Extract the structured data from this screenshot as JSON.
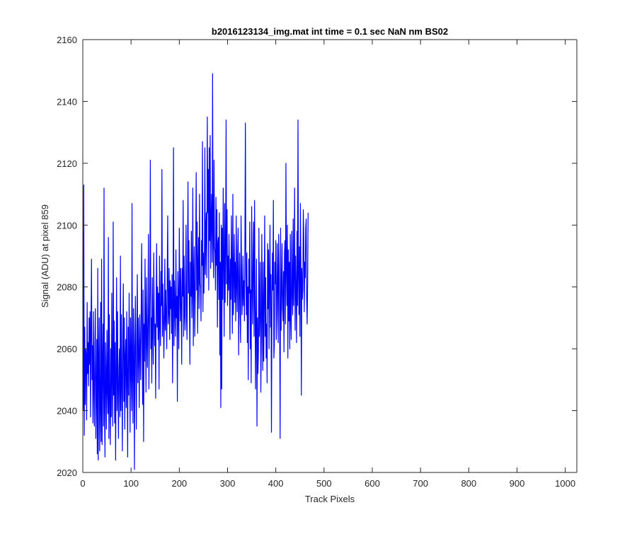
{
  "chart_data": {
    "type": "line",
    "title": "b2016123134_img.mat int time = 0.1 sec  NaN nm BS02",
    "xlabel": "Track Pixels",
    "ylabel": "Signal (ADU) at pixel 859",
    "xlim": [
      0,
      1024
    ],
    "ylim": [
      2020,
      2160
    ],
    "xticks": [
      0,
      100,
      200,
      300,
      400,
      500,
      600,
      700,
      800,
      900,
      1000
    ],
    "yticks": [
      2020,
      2040,
      2060,
      2080,
      2100,
      2120,
      2140,
      2160
    ],
    "grid": false,
    "legend": "none",
    "line_color": "#0000ff",
    "series": [
      {
        "x_start": 1,
        "x_step": 1,
        "y": [
          2040,
          2113,
          2032,
          2067,
          2042,
          2060,
          2058,
          2037,
          2075,
          2052,
          2062,
          2048,
          2070,
          2055,
          2072,
          2038,
          2066,
          2089,
          2050,
          2061,
          2036,
          2072,
          2047,
          2035,
          2060,
          2073,
          2031,
          2045,
          2063,
          2026,
          2086,
          2024,
          2056,
          2070,
          2027,
          2040,
          2075,
          2030,
          2089,
          2029,
          2054,
          2068,
          2035,
          2112,
          2041,
          2025,
          2062,
          2052,
          2034,
          2066,
          2047,
          2039,
          2096,
          2031,
          2071,
          2044,
          2029,
          2060,
          2038,
          2078,
          2050,
          2035,
          2101,
          2045,
          2069,
          2036,
          2062,
          2024,
          2051,
          2083,
          2040,
          2072,
          2047,
          2031,
          2054,
          2060,
          2038,
          2090,
          2040,
          2071,
          2048,
          2027,
          2065,
          2081,
          2043,
          2070,
          2034,
          2057,
          2063,
          2041,
          2072,
          2051,
          2025,
          2067,
          2045,
          2078,
          2059,
          2033,
          2070,
          2055,
          2040,
          2107,
          2050,
          2036,
          2073,
          2060,
          2021,
          2061,
          2077,
          2051,
          2034,
          2066,
          2084,
          2049,
          2070,
          2058,
          2041,
          2071,
          2060,
          2050,
          2074,
          2094,
          2062,
          2042,
          2079,
          2030,
          2068,
          2056,
          2089,
          2065,
          2046,
          2083,
          2063,
          2054,
          2073,
          2097,
          2047,
          2063,
          2081,
          2121,
          2060,
          2070,
          2049,
          2083,
          2066,
          2055,
          2091,
          2072,
          2061,
          2068,
          2044,
          2074,
          2094,
          2067,
          2080,
          2063,
          2078,
          2047,
          2090,
          2068,
          2061,
          2085,
          2074,
          2118,
          2064,
          2081,
          2071,
          2057,
          2069,
          2089,
          2066,
          2079,
          2070,
          2060,
          2085,
          2103,
          2068,
          2072,
          2086,
          2063,
          2082,
          2073,
          2080,
          2065,
          2084,
          2049,
          2074,
          2125,
          2061,
          2082,
          2073,
          2064,
          2092,
          2070,
          2077,
          2043,
          2085,
          2076,
          2060,
          2099,
          2081,
          2069,
          2086,
          2074,
          2055,
          2086,
          2077,
          2108,
          2064,
          2090,
          2071,
          2066,
          2082,
          2100,
          2070,
          2063,
          2087,
          2114,
          2078,
          2095,
          2074,
          2055,
          2088,
          2077,
          2098,
          2070,
          2079,
          2112,
          2061,
          2083,
          2093,
          2064,
          2076,
          2092,
          2117,
          2079,
          2101,
          2065,
          2088,
          2096,
          2073,
          2110,
          2081,
          2080,
          2069,
          2095,
          2087,
          2127,
          2072,
          2091,
          2078,
          2088,
          2125,
          2084,
          2099,
          2104,
          2083,
          2135,
          2104,
          2118,
          2079,
          2125,
          2095,
          2129,
          2086,
          2102,
          2110,
          2088,
          2149,
          2097,
          2083,
          2121,
          2093,
          2091,
          2079,
          2109,
          2087,
          2105,
          2067,
          2094,
          2096,
          2076,
          2104,
          2058,
          2088,
          2041,
          2100,
          2047,
          2099,
          2076,
          2112,
          2088,
          2064,
          2107,
          2075,
          2093,
          2134,
          2081,
          2105,
          2074,
          2090,
          2079,
          2097,
          2083,
          2063,
          2089,
          2076,
          2103,
          2085,
          2065,
          2110,
          2071,
          2083,
          2097,
          2075,
          2088,
          2069,
          2103,
          2081,
          2072,
          2092,
          2099,
          2058,
          2080,
          2091,
          2071,
          2062,
          2103,
          2087,
          2071,
          2077,
          2090,
          2074,
          2082,
          2069,
          2095,
          2133,
          2083,
          2071,
          2091,
          2062,
          2080,
          2050,
          2089,
          2078,
          2101,
          2060,
          2079,
          2049,
          2106,
          2083,
          2068,
          2089,
          2101,
          2064,
          2108,
          2075,
          2047,
          2071,
          2089,
          2035,
          2070,
          2052,
          2059,
          2099,
          2064,
          2075,
          2088,
          2046,
          2063,
          2097,
          2071,
          2053,
          2088,
          2056,
          2075,
          2103,
          2064,
          2083,
          2057,
          2068,
          2049,
          2094,
          2073,
          2092,
          2060,
          2082,
          2100,
          2067,
          2084,
          2033,
          2072,
          2091,
          2079,
          2108,
          2057,
          2061,
          2088,
          2081,
          2095,
          2063,
          2071,
          2094,
          2081,
          2062,
          2097,
          2086,
          2070,
          2031,
          2099,
          2066,
          2080,
          2094,
          2073,
          2069,
          2085,
          2059,
          2091,
          2095,
          2068,
          2120,
          2086,
          2074,
          2100,
          2057,
          2092,
          2069,
          2088,
          2060,
          2097,
          2070,
          2063,
          2098,
          2080,
          2071,
          2102,
          2074,
          2084,
          2112,
          2066,
          2090,
          2079,
          2062,
          2098,
          2074,
          2134,
          2083,
          2071,
          2093,
          2064,
          2107,
          2087,
          2045,
          2086,
          2076,
          2079,
          2105,
          2096,
          2072,
          2088,
          2083,
          2099,
          2102,
          2076,
          2068,
          2081,
          2104
        ]
      }
    ]
  }
}
